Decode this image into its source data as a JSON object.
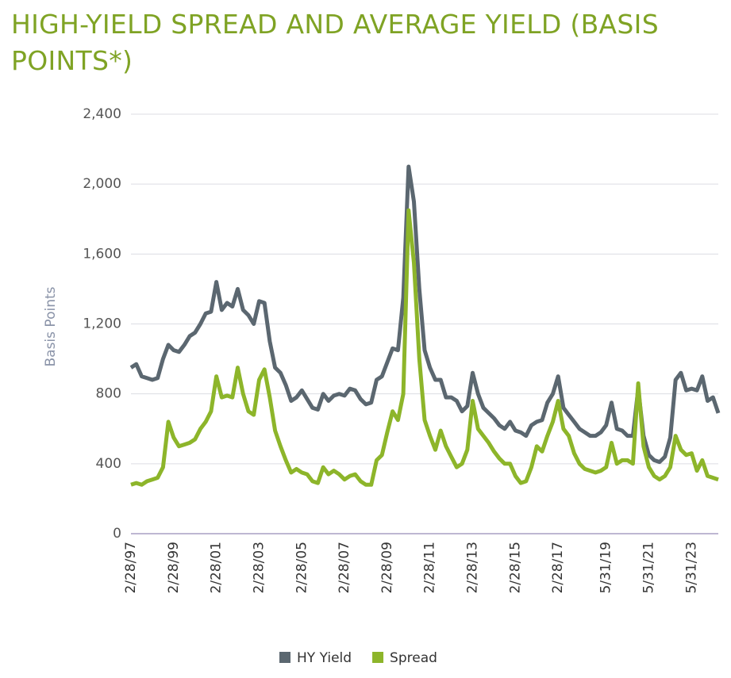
{
  "chart_data": {
    "type": "line",
    "title": "HIGH-YIELD SPREAD AND AVERAGE YIELD (BASIS POINTS*)",
    "y_label": "Basis Points",
    "categories": [
      "2/28/97",
      null,
      null,
      null,
      null,
      null,
      null,
      null,
      "2/28/99",
      null,
      null,
      null,
      null,
      null,
      null,
      null,
      "2/28/01",
      null,
      null,
      null,
      null,
      null,
      null,
      null,
      "2/28/03",
      null,
      null,
      null,
      null,
      null,
      null,
      null,
      "2/28/05",
      null,
      null,
      null,
      null,
      null,
      null,
      null,
      "2/28/07",
      null,
      null,
      null,
      null,
      null,
      null,
      null,
      "2/28/09",
      null,
      null,
      null,
      null,
      null,
      null,
      null,
      "2/28/11",
      null,
      null,
      null,
      null,
      null,
      null,
      null,
      "2/28/13",
      null,
      null,
      null,
      null,
      null,
      null,
      null,
      "2/28/15",
      null,
      null,
      null,
      null,
      null,
      null,
      null,
      "2/28/17",
      null,
      null,
      null,
      null,
      null,
      null,
      null,
      null,
      "5/31/19",
      null,
      null,
      null,
      null,
      null,
      null,
      null,
      "5/31/21",
      null,
      null,
      null,
      null,
      null,
      null,
      null,
      "5/31/23",
      null,
      null,
      null,
      null,
      null
    ],
    "series": [
      {
        "name": "HY Yield",
        "color": "#5b6770",
        "values": [
          950,
          970,
          900,
          890,
          880,
          890,
          1000,
          1080,
          1050,
          1040,
          1080,
          1130,
          1150,
          1200,
          1260,
          1270,
          1440,
          1280,
          1320,
          1300,
          1400,
          1280,
          1250,
          1200,
          1330,
          1320,
          1100,
          950,
          920,
          850,
          760,
          780,
          820,
          770,
          720,
          710,
          800,
          760,
          790,
          800,
          790,
          830,
          820,
          770,
          740,
          750,
          880,
          900,
          980,
          1060,
          1050,
          1350,
          2100,
          1900,
          1400,
          1050,
          950,
          880,
          880,
          780,
          780,
          760,
          700,
          730,
          920,
          800,
          720,
          690,
          660,
          620,
          600,
          640,
          590,
          580,
          560,
          620,
          640,
          650,
          750,
          800,
          900,
          720,
          680,
          640,
          600,
          580,
          560,
          560,
          580,
          620,
          750,
          600,
          590,
          560,
          560,
          830,
          560,
          450,
          420,
          410,
          440,
          550,
          880,
          920,
          820,
          830,
          820,
          900,
          760,
          780,
          690
        ]
      },
      {
        "name": "Spread",
        "color": "#8db52a",
        "values": [
          280,
          290,
          280,
          300,
          310,
          320,
          380,
          640,
          550,
          500,
          510,
          520,
          540,
          600,
          640,
          700,
          900,
          780,
          790,
          780,
          950,
          800,
          700,
          680,
          880,
          940,
          780,
          590,
          500,
          420,
          350,
          370,
          350,
          340,
          300,
          290,
          380,
          340,
          360,
          340,
          310,
          330,
          340,
          300,
          280,
          280,
          420,
          450,
          580,
          700,
          650,
          800,
          1850,
          1550,
          1000,
          650,
          560,
          480,
          590,
          500,
          440,
          380,
          400,
          480,
          760,
          600,
          560,
          520,
          470,
          430,
          400,
          400,
          330,
          290,
          300,
          380,
          500,
          470,
          560,
          640,
          760,
          600,
          560,
          460,
          400,
          370,
          360,
          350,
          360,
          380,
          520,
          400,
          420,
          420,
          400,
          860,
          500,
          380,
          330,
          310,
          330,
          380,
          560,
          480,
          450,
          460,
          360,
          420,
          330,
          320,
          310
        ]
      }
    ],
    "ylim": [
      0,
      2400
    ],
    "yticks": [
      0,
      400,
      800,
      {
        "value": 1200,
        "label": "1,200"
      },
      {
        "value": 1600,
        "label": "1,600"
      },
      {
        "value": 2000,
        "label": "2,000"
      },
      {
        "value": 2400,
        "label": "2,400"
      }
    ],
    "grid": true,
    "legend": "bottom"
  }
}
